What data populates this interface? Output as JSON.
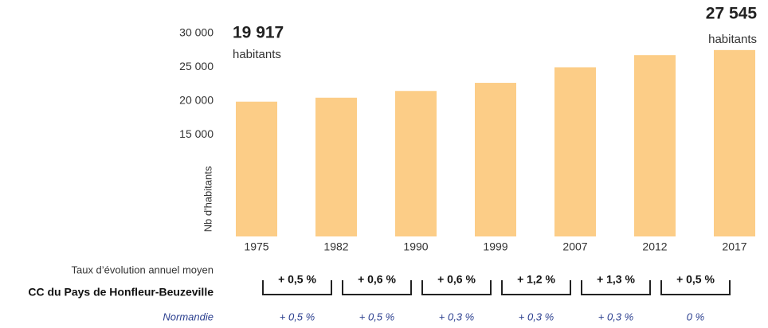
{
  "chart_data": {
    "type": "bar",
    "y_label": "Nb d'habitants",
    "categories": [
      "1975",
      "1982",
      "1990",
      "1999",
      "2007",
      "2012",
      "2017"
    ],
    "values": [
      19917,
      20500,
      21500,
      22700,
      25000,
      26800,
      27545
    ],
    "value_labels": [
      "19 917",
      null,
      null,
      null,
      null,
      null,
      "27 545"
    ],
    "value_label_unit": "habitants",
    "color": "#fccd87",
    "ylim": [
      0,
      30000
    ],
    "yticks": [
      {
        "value": 15000,
        "label": "15 000"
      },
      {
        "value": 20000,
        "label": "20 000"
      },
      {
        "value": 25000,
        "label": "25 000"
      },
      {
        "value": 30000,
        "label": "30 000"
      }
    ],
    "grid": false,
    "rates_title": "Taux d’évolution annuel moyen",
    "rates": [
      {
        "name": "CC du Pays de Honfleur-Beuzeville",
        "values": [
          0.5,
          0.6,
          0.6,
          1.2,
          1.3,
          0.5
        ],
        "value_labels": [
          "+ 0,5 %",
          "+ 0,6 %",
          "+ 0,6 %",
          "+ 1,2 %",
          "+ 1,3 %",
          "+ 0,5 %"
        ]
      },
      {
        "name": "Normandie",
        "color": "#2b3f8f",
        "values": [
          0.5,
          0.5,
          0.3,
          0.3,
          0.3,
          0
        ],
        "value_labels": [
          "+ 0,5 %",
          "+ 0,5 %",
          "+ 0,3 %",
          "+ 0,3 %",
          "+ 0,3 %",
          "0 %"
        ]
      }
    ]
  }
}
